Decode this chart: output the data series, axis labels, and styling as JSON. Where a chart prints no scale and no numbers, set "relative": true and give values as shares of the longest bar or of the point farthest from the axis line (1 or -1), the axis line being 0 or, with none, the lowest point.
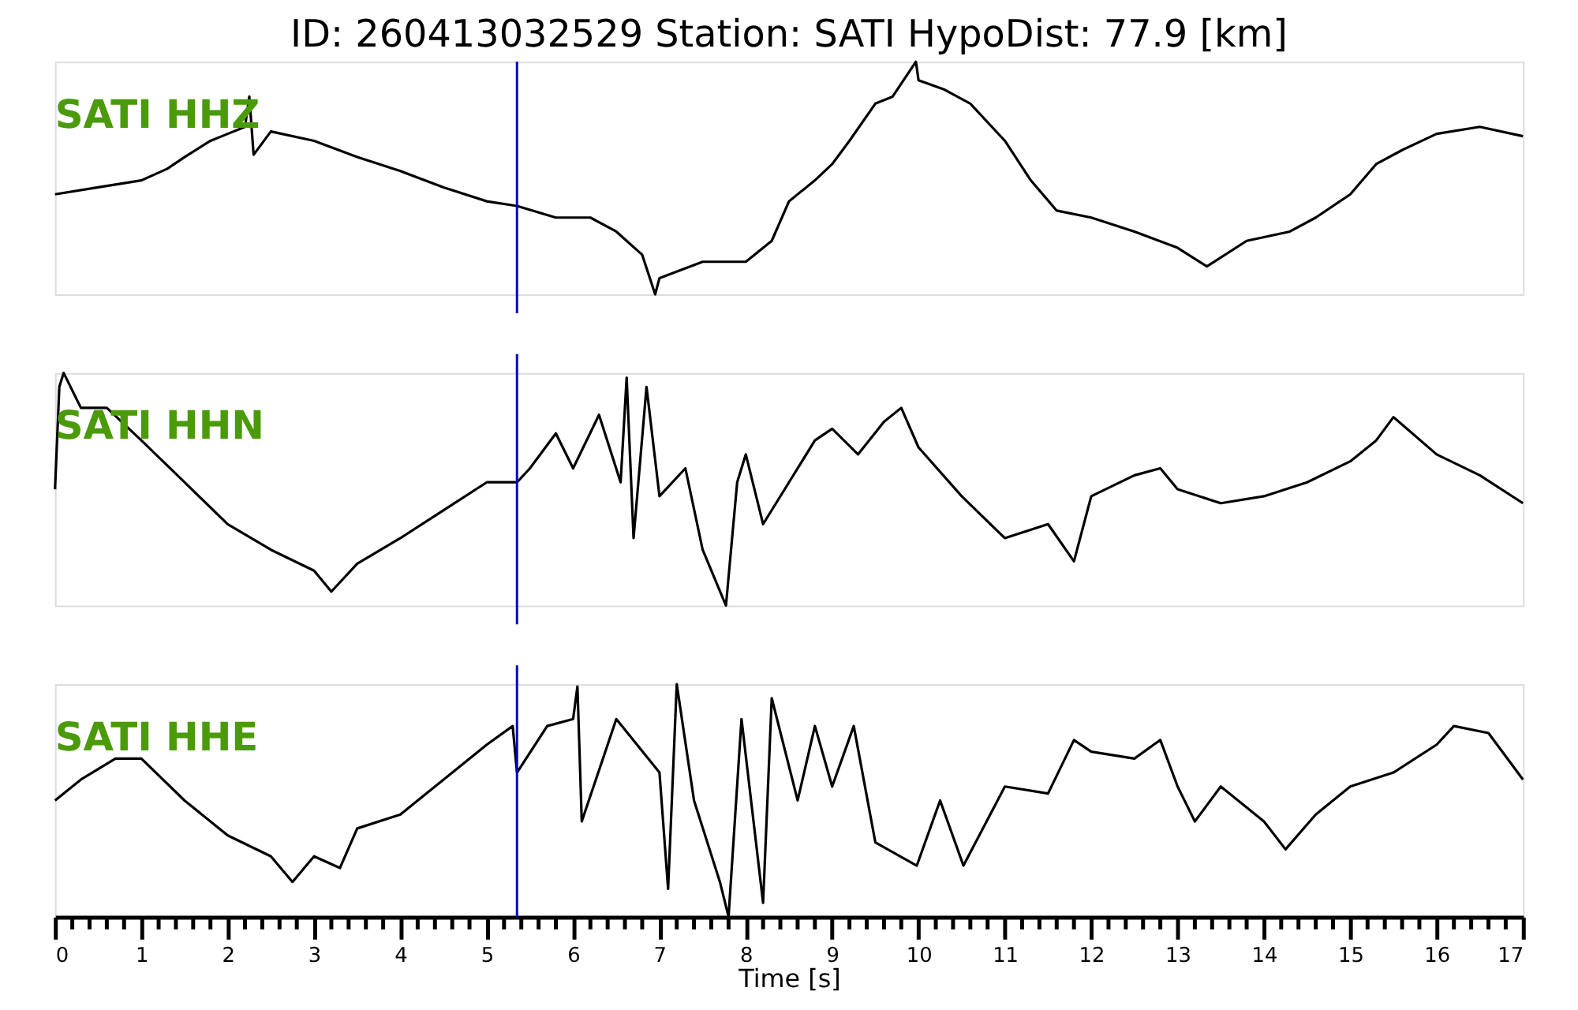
{
  "chart_data": [
    {
      "type": "line",
      "title": "ID: 260413032529   Station: SATI   HypoDist:     77.9 [km]",
      "relative": true,
      "xlim": [
        0,
        17
      ],
      "tick_labels": false,
      "series": [
        {
          "name": "SATI HHZ",
          "color": "#000000",
          "x": [
            0,
            0.5,
            1,
            1.3,
            1.5,
            1.8,
            2,
            2.2,
            2.25,
            2.3,
            2.5,
            3,
            3.5,
            4,
            4.5,
            5,
            5.35,
            5.8,
            6.2,
            6.5,
            6.8,
            6.95,
            7,
            7.5,
            8,
            8.3,
            8.5,
            8.8,
            9,
            9.2,
            9.5,
            9.7,
            9.97,
            10,
            10.3,
            10.6,
            11,
            11.3,
            11.6,
            12,
            12.5,
            13,
            13.34,
            13.8,
            14.3,
            14.6,
            15,
            15.3,
            15.6,
            16,
            16.5,
            17
          ],
          "values": [
            0.43,
            0.46,
            0.49,
            0.54,
            0.59,
            0.66,
            0.69,
            0.72,
            0.85,
            0.6,
            0.7,
            0.66,
            0.59,
            0.53,
            0.46,
            0.4,
            0.38,
            0.33,
            0.33,
            0.27,
            0.17,
            0,
            0.07,
            0.14,
            0.14,
            0.23,
            0.4,
            0.49,
            0.56,
            0.66,
            0.82,
            0.85,
            1,
            0.92,
            0.88,
            0.82,
            0.66,
            0.49,
            0.36,
            0.33,
            0.27,
            0.2,
            0.12,
            0.23,
            0.27,
            0.33,
            0.43,
            0.56,
            0.62,
            0.69,
            0.72,
            0.68
          ]
        }
      ],
      "ref_lines": [
        {
          "axis": "x",
          "value": 5.35,
          "color": "#0000cc"
        }
      ]
    },
    {
      "type": "line",
      "relative": true,
      "xlim": [
        0,
        17
      ],
      "tick_labels": false,
      "series": [
        {
          "name": "SATI HHN",
          "color": "#000000",
          "x": [
            0,
            0.05,
            0.1,
            0.3,
            0.6,
            1,
            1.5,
            2,
            2.5,
            3,
            3.2,
            3.5,
            4,
            4.5,
            5,
            5.35,
            5.5,
            5.8,
            6,
            6.3,
            6.55,
            6.62,
            6.7,
            6.85,
            7,
            7.3,
            7.5,
            7.77,
            7.9,
            8,
            8.2,
            8.5,
            8.8,
            9,
            9.3,
            9.6,
            9.8,
            10,
            10.5,
            11,
            11.5,
            11.8,
            12,
            12.5,
            12.8,
            13,
            13.5,
            14,
            14.5,
            15,
            15.3,
            15.5,
            16,
            16.5,
            17
          ],
          "values": [
            0.5,
            0.94,
            1,
            0.85,
            0.85,
            0.71,
            0.53,
            0.35,
            0.24,
            0.15,
            0.06,
            0.18,
            0.29,
            0.41,
            0.53,
            0.53,
            0.59,
            0.74,
            0.59,
            0.82,
            0.53,
            0.98,
            0.29,
            0.94,
            0.47,
            0.59,
            0.24,
            0,
            0.53,
            0.65,
            0.35,
            0.53,
            0.71,
            0.76,
            0.65,
            0.79,
            0.85,
            0.68,
            0.47,
            0.29,
            0.35,
            0.19,
            0.47,
            0.56,
            0.59,
            0.5,
            0.44,
            0.47,
            0.53,
            0.62,
            0.71,
            0.81,
            0.65,
            0.56,
            0.44
          ]
        }
      ],
      "ref_lines": [
        {
          "axis": "x",
          "value": 5.35,
          "color": "#0000cc"
        }
      ]
    },
    {
      "type": "line",
      "relative": true,
      "xlim": [
        0,
        17
      ],
      "tick_labels": "x",
      "xlabel": "Time [s]",
      "xticks": [
        0,
        {
          "value": 0.2,
          "label": null
        },
        {
          "value": 0.4,
          "label": null
        },
        {
          "value": 0.6,
          "label": null
        },
        {
          "value": 0.8,
          "label": null
        },
        1,
        {
          "value": 1.2,
          "label": null
        },
        {
          "value": 1.4,
          "label": null
        },
        {
          "value": 1.6,
          "label": null
        },
        {
          "value": 1.8,
          "label": null
        },
        2,
        {
          "value": 2.2,
          "label": null
        },
        {
          "value": 2.4,
          "label": null
        },
        {
          "value": 2.6,
          "label": null
        },
        {
          "value": 2.8,
          "label": null
        },
        3,
        {
          "value": 3.2,
          "label": null
        },
        {
          "value": 3.4,
          "label": null
        },
        {
          "value": 3.6,
          "label": null
        },
        {
          "value": 3.8,
          "label": null
        },
        4,
        {
          "value": 4.2,
          "label": null
        },
        {
          "value": 4.4,
          "label": null
        },
        {
          "value": 4.6,
          "label": null
        },
        {
          "value": 4.8,
          "label": null
        },
        5,
        {
          "value": 5.2,
          "label": null
        },
        {
          "value": 5.4,
          "label": null
        },
        {
          "value": 5.6,
          "label": null
        },
        {
          "value": 5.8,
          "label": null
        },
        6,
        {
          "value": 6.2,
          "label": null
        },
        {
          "value": 6.4,
          "label": null
        },
        {
          "value": 6.6,
          "label": null
        },
        {
          "value": 6.8,
          "label": null
        },
        7,
        {
          "value": 7.2,
          "label": null
        },
        {
          "value": 7.4,
          "label": null
        },
        {
          "value": 7.6,
          "label": null
        },
        {
          "value": 7.8,
          "label": null
        },
        8,
        {
          "value": 8.2,
          "label": null
        },
        {
          "value": 8.4,
          "label": null
        },
        {
          "value": 8.6,
          "label": null
        },
        {
          "value": 8.8,
          "label": null
        },
        9,
        {
          "value": 9.2,
          "label": null
        },
        {
          "value": 9.4,
          "label": null
        },
        {
          "value": 9.6,
          "label": null
        },
        {
          "value": 9.8,
          "label": null
        },
        10,
        {
          "value": 10.2,
          "label": null
        },
        {
          "value": 10.4,
          "label": null
        },
        {
          "value": 10.6,
          "label": null
        },
        {
          "value": 10.8,
          "label": null
        },
        11,
        {
          "value": 11.2,
          "label": null
        },
        {
          "value": 11.4,
          "label": null
        },
        {
          "value": 11.6,
          "label": null
        },
        {
          "value": 11.8,
          "label": null
        },
        12,
        {
          "value": 12.2,
          "label": null
        },
        {
          "value": 12.4,
          "label": null
        },
        {
          "value": 12.6,
          "label": null
        },
        {
          "value": 12.8,
          "label": null
        },
        13,
        {
          "value": 13.2,
          "label": null
        },
        {
          "value": 13.4,
          "label": null
        },
        {
          "value": 13.6,
          "label": null
        },
        {
          "value": 13.8,
          "label": null
        },
        14,
        {
          "value": 14.2,
          "label": null
        },
        {
          "value": 14.4,
          "label": null
        },
        {
          "value": 14.6,
          "label": null
        },
        {
          "value": 14.8,
          "label": null
        },
        15,
        {
          "value": 15.2,
          "label": null
        },
        {
          "value": 15.4,
          "label": null
        },
        {
          "value": 15.6,
          "label": null
        },
        {
          "value": 15.8,
          "label": null
        },
        16,
        {
          "value": 16.2,
          "label": null
        },
        {
          "value": 16.4,
          "label": null
        },
        {
          "value": 16.6,
          "label": null
        },
        {
          "value": 16.8,
          "label": null
        },
        17
      ],
      "series": [
        {
          "name": "SATI HHE",
          "color": "#000000",
          "x": [
            0,
            0.3,
            0.7,
            1,
            1.5,
            2,
            2.5,
            2.75,
            3,
            3.3,
            3.5,
            4,
            4.5,
            5,
            5.3,
            5.35,
            5.7,
            6,
            6.05,
            6.1,
            6.5,
            7,
            7.1,
            7.2,
            7.4,
            7.7,
            7.8,
            7.95,
            8.2,
            8.3,
            8.6,
            8.8,
            9,
            9.25,
            9.5,
            9.98,
            10.25,
            10.52,
            11,
            11.5,
            11.8,
            12,
            12.5,
            12.8,
            13,
            13.2,
            13.5,
            14,
            14.25,
            14.6,
            15,
            15.5,
            16,
            16.2,
            16.6,
            17
          ],
          "values": [
            0.5,
            0.59,
            0.68,
            0.68,
            0.5,
            0.35,
            0.26,
            0.15,
            0.26,
            0.21,
            0.38,
            0.44,
            0.59,
            0.74,
            0.82,
            0.62,
            0.82,
            0.85,
            0.99,
            0.41,
            0.85,
            0.62,
            0.12,
            1,
            0.5,
            0.15,
            0,
            0.85,
            0.06,
            0.94,
            0.5,
            0.82,
            0.56,
            0.82,
            0.32,
            0.22,
            0.5,
            0.22,
            0.56,
            0.53,
            0.76,
            0.71,
            0.68,
            0.76,
            0.56,
            0.41,
            0.56,
            0.41,
            0.29,
            0.44,
            0.56,
            0.62,
            0.74,
            0.82,
            0.79,
            0.59
          ]
        }
      ],
      "ref_lines": [
        {
          "axis": "x",
          "value": 5.35,
          "color": "#0000cc"
        }
      ]
    }
  ]
}
